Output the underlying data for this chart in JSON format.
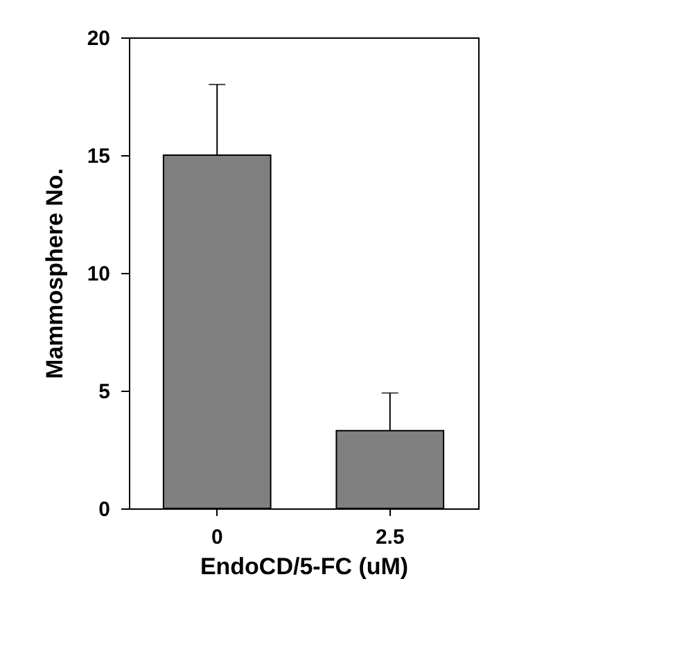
{
  "chart_data": {
    "type": "bar",
    "xlabel": "EndoCD/5-FC (uM)",
    "ylabel": "Mammosphere No.",
    "categories": [
      "0",
      "2.5"
    ],
    "values": [
      15,
      3.3
    ],
    "errors": [
      [
        15,
        18
      ],
      [
        3.3,
        4.9
      ]
    ],
    "color": "#808080",
    "ylim": [
      0,
      20
    ],
    "yticks": [
      0,
      5,
      10,
      15,
      20
    ],
    "grid": false
  }
}
